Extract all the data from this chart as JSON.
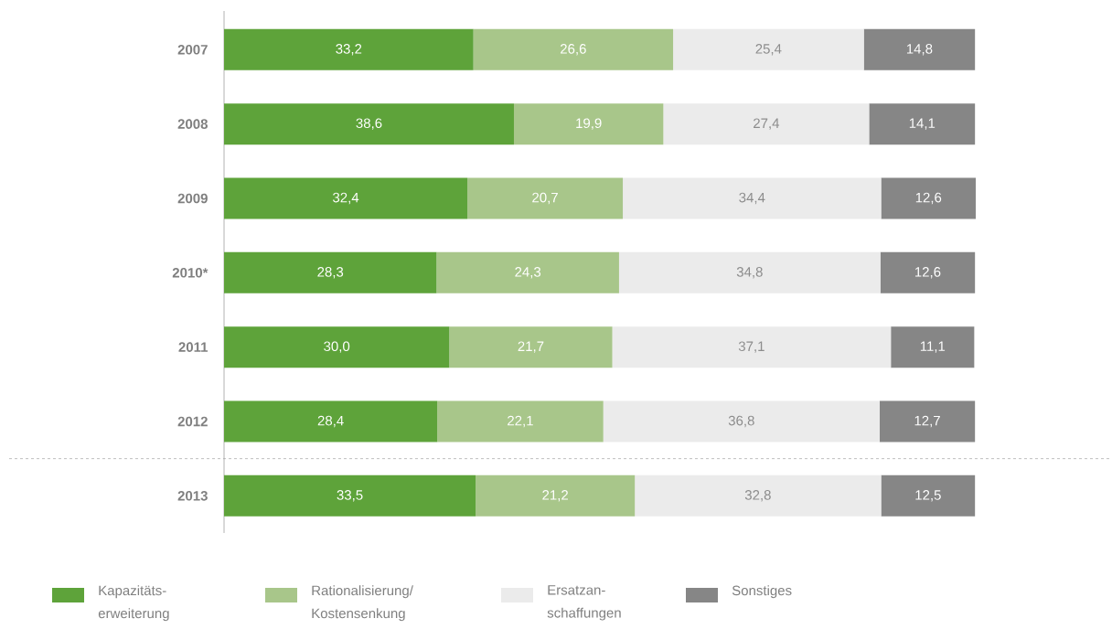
{
  "chart_data": {
    "type": "bar",
    "orientation": "horizontal",
    "stacked": true,
    "categories": [
      "2007",
      "2008",
      "2009",
      "2010*",
      "2011",
      "2012",
      "2013"
    ],
    "series": [
      {
        "name": "Kapazitäts-erweiterung",
        "color": "#5ea33a",
        "values": [
          33.2,
          38.6,
          32.4,
          28.3,
          30.0,
          28.4,
          33.5
        ],
        "value_labels": [
          "33,2",
          "38,6",
          "32,4",
          "28,3",
          "30,0",
          "28,4",
          "33,5"
        ]
      },
      {
        "name": "Rationalisierung/ Kostensenkung",
        "color": "#a8c68a",
        "values": [
          26.6,
          19.9,
          20.7,
          24.3,
          21.7,
          22.1,
          21.2
        ],
        "value_labels": [
          "26,6",
          "19,9",
          "20,7",
          "24,3",
          "21,7",
          "22,1",
          "21,2"
        ]
      },
      {
        "name": "Ersatzan-schaffungen",
        "color": "#ebebeb",
        "values": [
          25.4,
          27.4,
          34.4,
          34.8,
          37.1,
          36.8,
          32.8
        ],
        "value_labels": [
          "25,4",
          "27,4",
          "34,4",
          "34,8",
          "37,1",
          "36,8",
          "32,8"
        ]
      },
      {
        "name": "Sonstiges",
        "color": "#868686",
        "values": [
          14.8,
          14.1,
          12.6,
          12.6,
          11.1,
          12.7,
          12.5
        ],
        "value_labels": [
          "14,8",
          "14,1",
          "12,6",
          "12,6",
          "11,1",
          "12,7",
          "12,5"
        ]
      }
    ],
    "legend": "bottom"
  }
}
